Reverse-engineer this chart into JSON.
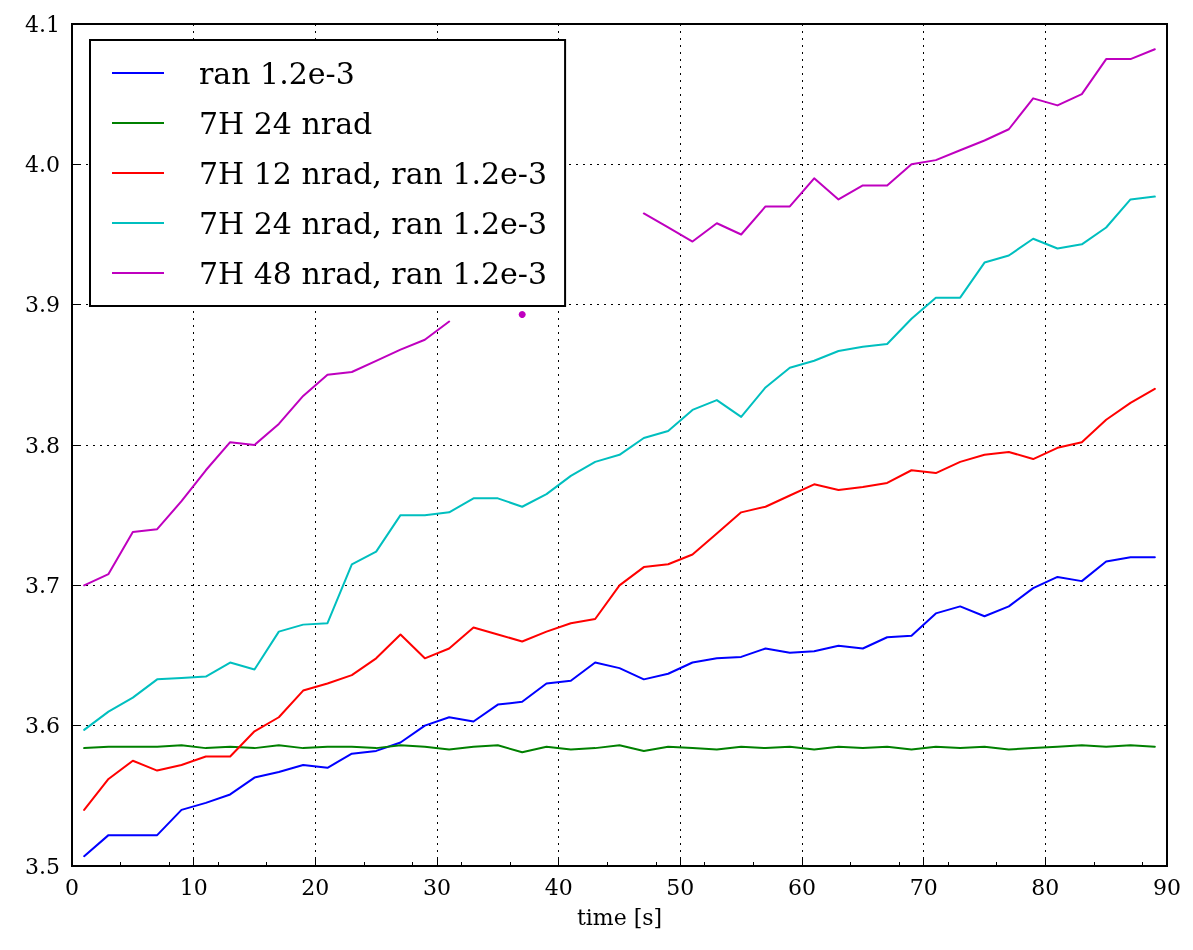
{
  "chart_data": {
    "type": "line",
    "xlabel": "time [s]",
    "x": [
      1,
      3,
      5,
      7,
      9,
      11,
      13,
      15,
      17,
      19,
      21,
      23,
      25,
      27,
      29,
      31,
      33,
      35,
      37,
      39,
      41,
      43,
      45,
      47,
      49,
      51,
      53,
      55,
      57,
      59,
      61,
      63,
      65,
      67,
      69,
      71,
      73,
      75,
      77,
      79,
      81,
      83,
      85,
      87,
      89
    ],
    "series": [
      {
        "name": "ran 1.2e-3",
        "color": "#0000ff",
        "values": [
          3.507,
          3.522,
          3.522,
          3.522,
          3.54,
          3.545,
          3.551,
          3.563,
          3.567,
          3.572,
          3.57,
          3.58,
          3.582,
          3.588,
          3.6,
          3.606,
          3.603,
          3.615,
          3.617,
          3.63,
          3.632,
          3.645,
          3.641,
          3.633,
          3.637,
          3.645,
          3.648,
          3.649,
          3.655,
          3.652,
          3.653,
          3.657,
          3.655,
          3.663,
          3.664,
          3.68,
          3.685,
          3.678,
          3.685,
          3.698,
          3.706,
          3.703,
          3.717,
          3.72,
          3.72
        ]
      },
      {
        "name": "7H 24 nrad",
        "color": "#008000",
        "values": [
          3.584,
          3.585,
          3.585,
          3.585,
          3.586,
          3.584,
          3.585,
          3.584,
          3.586,
          3.584,
          3.585,
          3.585,
          3.584,
          3.586,
          3.585,
          3.583,
          3.585,
          3.586,
          3.581,
          3.585,
          3.583,
          3.584,
          3.586,
          3.582,
          3.585,
          3.584,
          3.583,
          3.585,
          3.584,
          3.585,
          3.583,
          3.585,
          3.584,
          3.585,
          3.583,
          3.585,
          3.584,
          3.585,
          3.583,
          3.584,
          3.585,
          3.586,
          3.585,
          3.586,
          3.585
        ]
      },
      {
        "name": "7H 12 nrad, ran 1.2e-3",
        "color": "#ff0000",
        "values": [
          3.54,
          3.562,
          3.575,
          3.568,
          3.572,
          3.578,
          3.578,
          3.596,
          3.606,
          3.625,
          3.63,
          3.636,
          3.648,
          3.665,
          3.648,
          3.655,
          3.67,
          3.665,
          3.66,
          3.667,
          3.673,
          3.676,
          3.7,
          3.713,
          3.715,
          3.722,
          3.737,
          3.752,
          3.756,
          3.764,
          3.772,
          3.768,
          3.77,
          3.773,
          3.782,
          3.78,
          3.788,
          3.793,
          3.795,
          3.79,
          3.798,
          3.802,
          3.818,
          3.83,
          3.84
        ]
      },
      {
        "name": "7H 24 nrad, ran 1.2e-3",
        "color": "#00bfbf",
        "values": [
          3.597,
          3.61,
          3.62,
          3.633,
          3.634,
          3.635,
          3.645,
          3.64,
          3.667,
          3.672,
          3.673,
          3.715,
          3.724,
          3.75,
          3.75,
          3.752,
          3.762,
          3.762,
          3.756,
          3.765,
          3.778,
          3.788,
          3.793,
          3.805,
          3.81,
          3.825,
          3.832,
          3.82,
          3.841,
          3.855,
          3.86,
          3.867,
          3.87,
          3.872,
          3.89,
          3.905,
          3.905,
          3.93,
          3.935,
          3.947,
          3.94,
          3.943,
          3.955,
          3.975,
          3.977
        ]
      },
      {
        "name": "7H 48 nrad, ran 1.2e-3",
        "color": "#bf00bf",
        "values": [
          3.7,
          3.708,
          3.738,
          3.74,
          3.76,
          3.782,
          3.802,
          3.8,
          3.815,
          3.835,
          3.85,
          3.852,
          3.86,
          3.868,
          3.875,
          3.888,
          null,
          null,
          3.893,
          null,
          null,
          null,
          null,
          3.965,
          3.955,
          3.945,
          3.958,
          3.95,
          3.97,
          3.97,
          3.99,
          3.975,
          3.985,
          3.985,
          4.0,
          4.003,
          4.01,
          4.017,
          4.025,
          4.047,
          4.042,
          4.05,
          4.075,
          4.075,
          4.082
        ]
      }
    ],
    "xlim": [
      0,
      90
    ],
    "xticks": [
      0,
      10,
      20,
      30,
      40,
      50,
      60,
      70,
      80,
      90
    ],
    "ylim": [
      3.5,
      4.1
    ],
    "yticks": [
      3.5,
      3.6,
      3.7,
      3.8,
      3.9,
      {
        "value": 4,
        "label": "4.0"
      },
      4.1
    ],
    "grid": true,
    "line_style": "solid",
    "legend": "top left"
  }
}
